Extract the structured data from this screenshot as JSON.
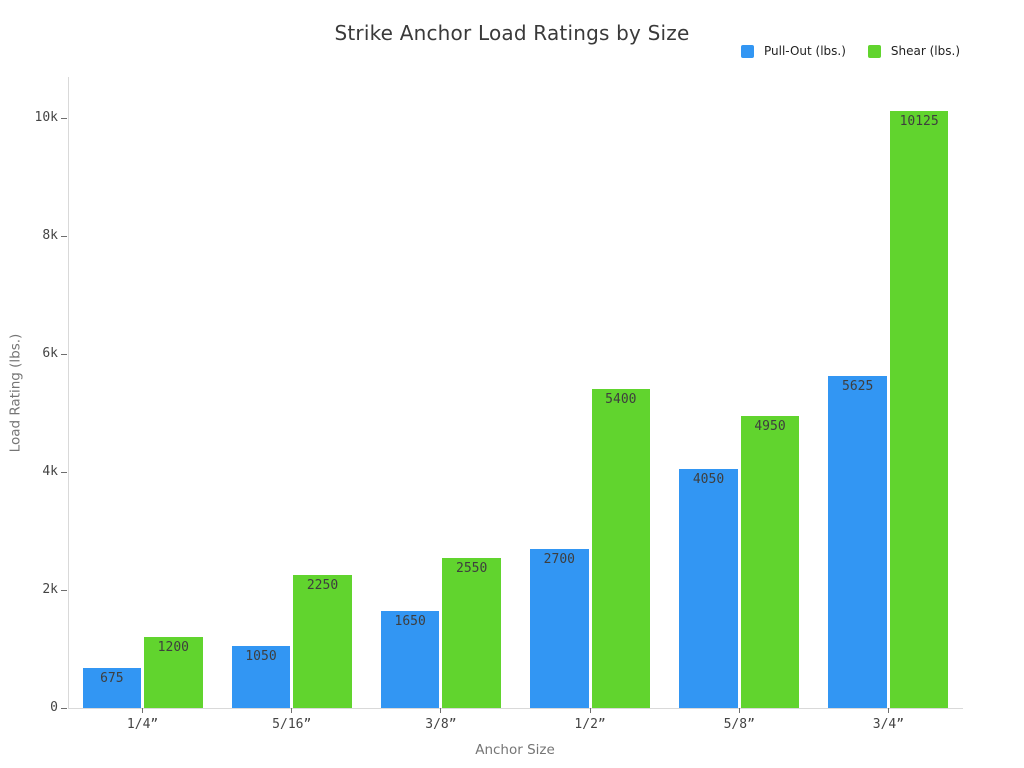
{
  "title": "Strike Anchor Load Ratings by Size",
  "legend": {
    "items": [
      {
        "label": "Pull-Out (lbs.)",
        "color": "#3296f3"
      },
      {
        "label": "Shear (lbs.)",
        "color": "#61d42e"
      }
    ]
  },
  "chart_data": {
    "type": "bar",
    "title": "Strike Anchor Load Ratings by Size",
    "categories": [
      "1/4”",
      "5/16”",
      "3/8”",
      "1/2”",
      "5/8”",
      "3/4”"
    ],
    "series": [
      {
        "name": "Pull-Out (lbs.)",
        "color": "#3296f3",
        "values": [
          675,
          1050,
          1650,
          2700,
          4050,
          5625
        ]
      },
      {
        "name": "Shear (lbs.)",
        "color": "#61d42e",
        "values": [
          1200,
          2250,
          2550,
          5400,
          4950,
          10125
        ]
      }
    ],
    "xlabel": "Anchor Size",
    "ylabel": "Load Rating (lbs.)",
    "ylim": [
      0,
      10700
    ],
    "yticks": [
      {
        "value": 0,
        "label": "0"
      },
      {
        "value": 2000,
        "label": "2k"
      },
      {
        "value": 4000,
        "label": "4k"
      },
      {
        "value": 6000,
        "label": "6k"
      },
      {
        "value": 8000,
        "label": "8k"
      },
      {
        "value": 10000,
        "label": "10k"
      }
    ],
    "bar_value_labels_visible": true,
    "legend_position": "top-right",
    "grid": false
  }
}
